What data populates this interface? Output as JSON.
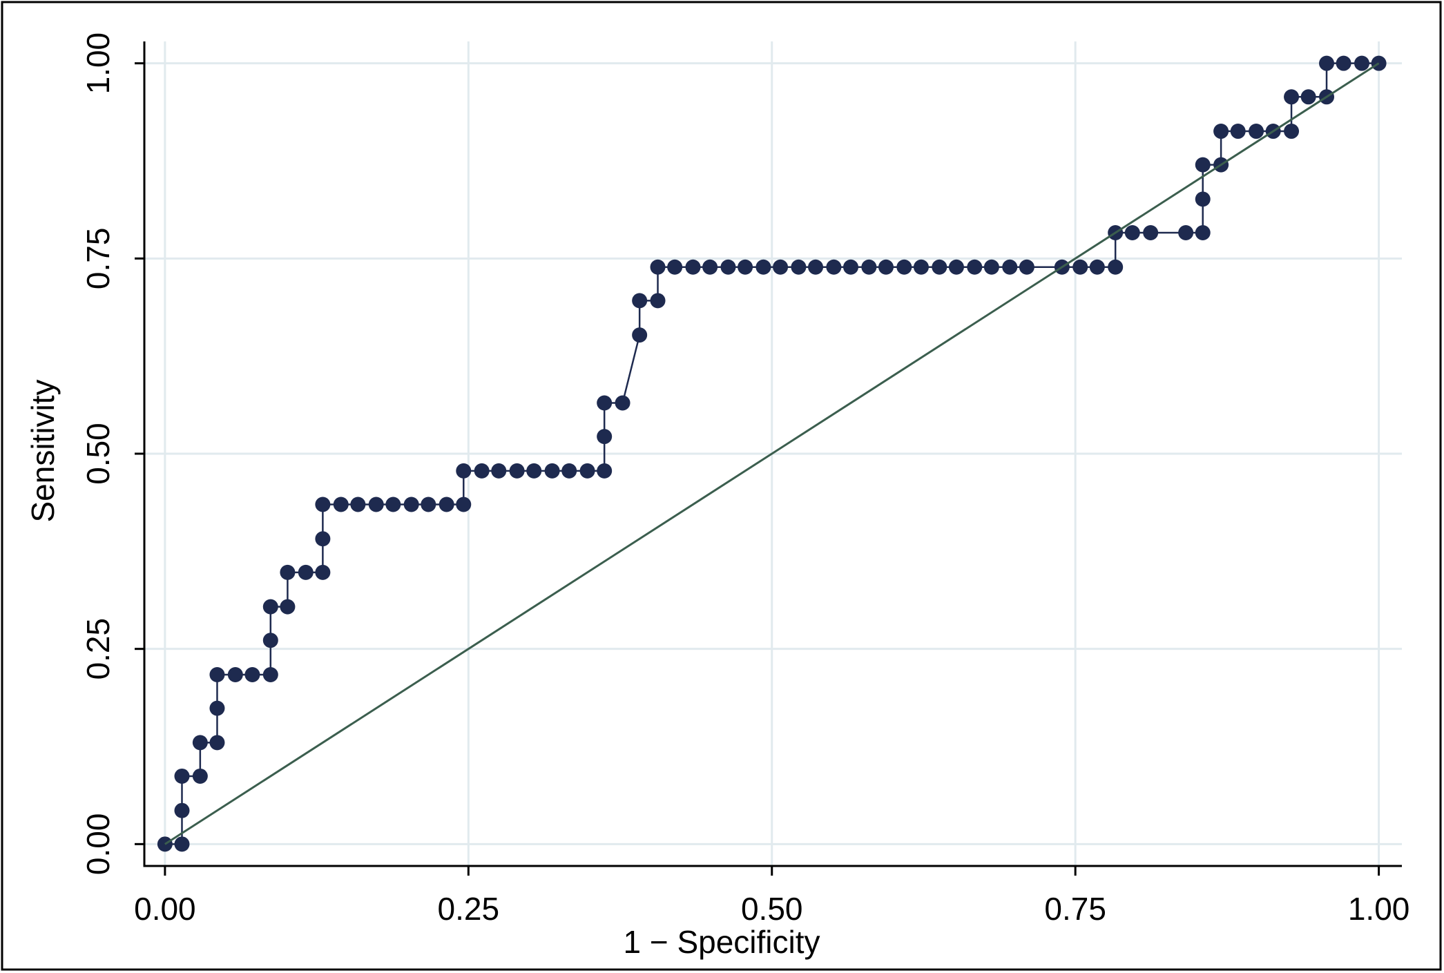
{
  "chart_data": {
    "type": "line",
    "x_label": "1 − Specificity",
    "y_label": "Sensitivity",
    "xlim": [
      -0.017,
      1.019
    ],
    "ylim": [
      -0.028,
      1.028
    ],
    "xticks": [
      {
        "value": 0,
        "label": "0.00"
      },
      {
        "value": 0.25,
        "label": "0.25"
      },
      {
        "value": 0.5,
        "label": "0.50"
      },
      {
        "value": 0.75,
        "label": "0.75"
      },
      {
        "value": 1,
        "label": "1.00"
      }
    ],
    "yticks": [
      {
        "value": 0,
        "label": "0.00"
      },
      {
        "value": 0.25,
        "label": "0.25"
      },
      {
        "value": 0.5,
        "label": "0.50"
      },
      {
        "value": 0.75,
        "label": "0.75"
      },
      {
        "value": 1,
        "label": "1.00"
      }
    ],
    "grid": true,
    "series": [
      {
        "color": "#1e2a4f",
        "marker": true,
        "x": [
          0,
          0.014,
          0.014,
          0.014,
          0.029,
          0.029,
          0.043,
          0.043,
          0.043,
          0.058,
          0.072,
          0.087,
          0.087,
          0.087,
          0.101,
          0.101,
          0.116,
          0.13,
          0.13,
          0.13,
          0.145,
          0.159,
          0.174,
          0.188,
          0.203,
          0.217,
          0.232,
          0.246,
          0.246,
          0.261,
          0.275,
          0.29,
          0.304,
          0.319,
          0.333,
          0.348,
          0.362,
          0.362,
          0.362,
          0.377,
          0.391,
          0.391,
          0.406,
          0.406,
          0.42,
          0.435,
          0.449,
          0.464,
          0.478,
          0.493,
          0.507,
          0.522,
          0.536,
          0.551,
          0.565,
          0.58,
          0.594,
          0.609,
          0.623,
          0.638,
          0.652,
          0.667,
          0.681,
          0.696,
          0.71,
          0.739,
          0.754,
          0.768,
          0.783,
          0.783,
          0.797,
          0.812,
          0.841,
          0.855,
          0.855,
          0.855,
          0.87,
          0.87,
          0.884,
          0.899,
          0.913,
          0.928,
          0.928,
          0.942,
          0.957,
          0.957,
          0.971,
          0.986,
          1
        ],
        "y": [
          0,
          0,
          0.043,
          0.087,
          0.087,
          0.13,
          0.13,
          0.174,
          0.217,
          0.217,
          0.217,
          0.217,
          0.261,
          0.304,
          0.304,
          0.348,
          0.348,
          0.348,
          0.391,
          0.435,
          0.435,
          0.435,
          0.435,
          0.435,
          0.435,
          0.435,
          0.435,
          0.435,
          0.478,
          0.478,
          0.478,
          0.478,
          0.478,
          0.478,
          0.478,
          0.478,
          0.478,
          0.522,
          0.565,
          0.565,
          0.652,
          0.696,
          0.696,
          0.739,
          0.739,
          0.739,
          0.739,
          0.739,
          0.739,
          0.739,
          0.739,
          0.739,
          0.739,
          0.739,
          0.739,
          0.739,
          0.739,
          0.739,
          0.739,
          0.739,
          0.739,
          0.739,
          0.739,
          0.739,
          0.739,
          0.739,
          0.739,
          0.739,
          0.739,
          0.783,
          0.783,
          0.783,
          0.783,
          0.783,
          0.826,
          0.87,
          0.87,
          0.913,
          0.913,
          0.913,
          0.913,
          0.913,
          0.957,
          0.957,
          0.957,
          1,
          1,
          1,
          1
        ]
      },
      {
        "color": "#3b5e4e",
        "marker": false,
        "x": [
          0,
          1
        ],
        "y": [
          0,
          1
        ]
      }
    ]
  }
}
